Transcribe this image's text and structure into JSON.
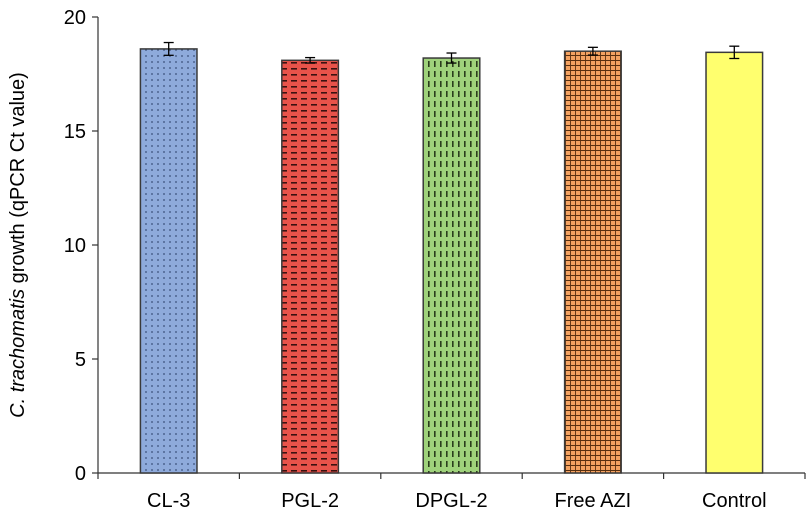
{
  "chart_data": {
    "type": "bar",
    "title": "",
    "xlabel": "",
    "ylabel": {
      "italic": "C. trachomatis",
      "rest": " growth (qPCR Ct value)"
    },
    "ylim": [
      0,
      20
    ],
    "yticks": [
      0,
      5,
      10,
      15,
      20
    ],
    "categories": [
      "CL-3",
      "PGL-2",
      "DPGL-2",
      "Free AZI",
      "Control"
    ],
    "values": [
      18.6,
      18.1,
      18.2,
      18.5,
      18.45
    ],
    "errors": [
      0.28,
      0.12,
      0.22,
      0.17,
      0.27
    ],
    "colors": [
      "#8eaadb",
      "#e8534a",
      "#9fd27b",
      "#f4a261",
      "#ffff6e"
    ],
    "patterns": [
      "dots",
      "dashes",
      "vdashes",
      "grid",
      "none"
    ]
  }
}
